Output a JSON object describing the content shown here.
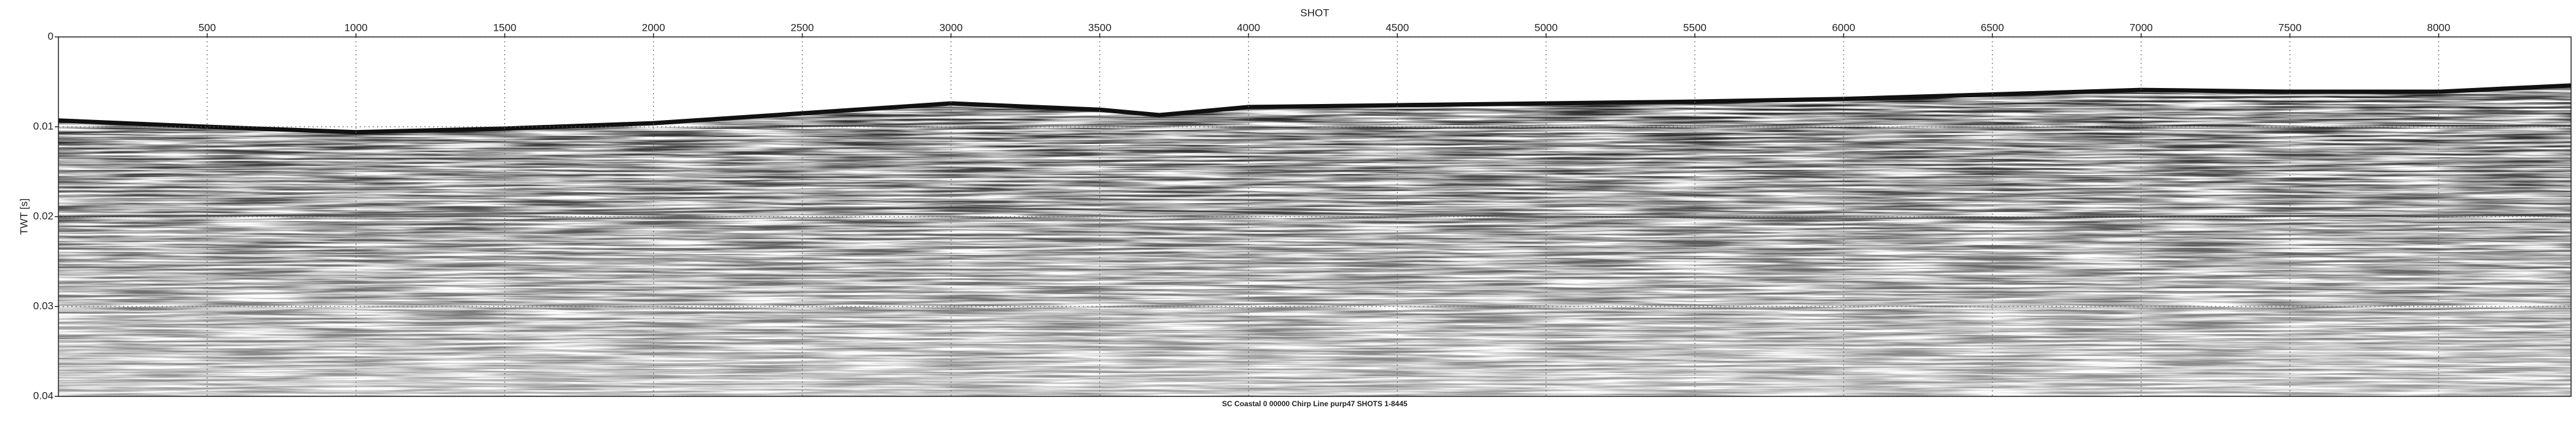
{
  "chart_data": {
    "type": "seismic",
    "title": "SC Coastal 0 00000 Chirp Line purp47 SHOTS 1-8445",
    "x_label": "SHOT",
    "y_label": "TWT [s]",
    "xlim": [
      0,
      8445
    ],
    "xticks": [
      500,
      1000,
      1500,
      2000,
      2500,
      3000,
      3500,
      4000,
      4500,
      5000,
      5500,
      6000,
      6500,
      7000,
      7500,
      8000
    ],
    "ylim": [
      0,
      0.04
    ],
    "yticks": [
      0,
      0.01,
      0.02,
      0.03,
      0.04
    ],
    "y_inverted": true,
    "grid": true,
    "series": [
      {
        "color": "#111111",
        "x": [
          0,
          500,
          1000,
          1500,
          2000,
          2500,
          3000,
          3500,
          3700,
          4000,
          4500,
          5000,
          5500,
          6000,
          6500,
          7000,
          7500,
          8000,
          8445
        ],
        "values": [
          0.0093,
          0.01,
          0.0106,
          0.0102,
          0.0096,
          0.0085,
          0.0074,
          0.0081,
          0.0087,
          0.0078,
          0.0076,
          0.0074,
          0.0072,
          0.0069,
          0.0064,
          0.0059,
          0.0061,
          0.0061,
          0.0054
        ]
      },
      {
        "color": "#333333",
        "x": [
          0,
          1000,
          2000,
          3000,
          4000,
          5000,
          6000,
          7000,
          8445
        ],
        "values": [
          0.02,
          0.0198,
          0.0195,
          0.019,
          0.0195,
          0.02,
          0.0202,
          0.02,
          0.0198
        ]
      }
    ]
  }
}
